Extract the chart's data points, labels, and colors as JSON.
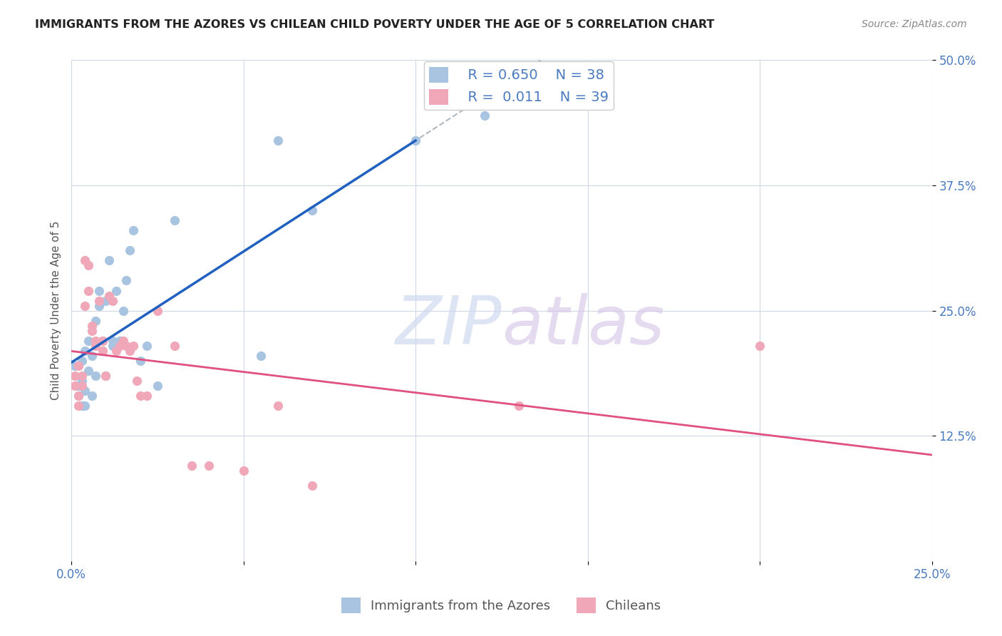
{
  "title": "IMMIGRANTS FROM THE AZORES VS CHILEAN CHILD POVERTY UNDER THE AGE OF 5 CORRELATION CHART",
  "source": "Source: ZipAtlas.com",
  "ylabel": "Child Poverty Under the Age of 5",
  "xlim": [
    0.0,
    0.25
  ],
  "ylim": [
    0.0,
    0.5
  ],
  "xticks": [
    0.0,
    0.05,
    0.1,
    0.15,
    0.2,
    0.25
  ],
  "xticklabels": [
    "0.0%",
    "",
    "",
    "",
    "",
    "25.0%"
  ],
  "ytick_positions": [
    0.125,
    0.25,
    0.375,
    0.5
  ],
  "ytick_labels": [
    "12.5%",
    "25.0%",
    "37.5%",
    "50.0%"
  ],
  "series1_name": "Immigrants from the Azores",
  "series1_R": "0.650",
  "series1_N": "38",
  "series1_color": "#a8c4e0",
  "series1_trend_color": "#2060c0",
  "series2_name": "Chileans",
  "series2_R": "0.011",
  "series2_N": "39",
  "series2_color": "#f0a8b8",
  "series2_trend_color": "#e05080",
  "background_color": "#ffffff",
  "grid_color": "#d0d8e8",
  "series1_x": [
    0.001,
    0.002,
    0.002,
    0.003,
    0.003,
    0.003,
    0.004,
    0.004,
    0.004,
    0.005,
    0.005,
    0.006,
    0.006,
    0.007,
    0.007,
    0.008,
    0.008,
    0.009,
    0.01,
    0.01,
    0.011,
    0.012,
    0.012,
    0.013,
    0.014,
    0.015,
    0.016,
    0.017,
    0.018,
    0.02,
    0.022,
    0.025,
    0.03,
    0.055,
    0.06,
    0.07,
    0.1,
    0.12
  ],
  "series1_y": [
    0.195,
    0.175,
    0.165,
    0.155,
    0.2,
    0.18,
    0.21,
    0.17,
    0.155,
    0.22,
    0.19,
    0.205,
    0.165,
    0.24,
    0.185,
    0.27,
    0.255,
    0.22,
    0.26,
    0.185,
    0.3,
    0.22,
    0.215,
    0.27,
    0.22,
    0.25,
    0.28,
    0.31,
    0.33,
    0.2,
    0.215,
    0.175,
    0.34,
    0.205,
    0.42,
    0.35,
    0.42,
    0.445
  ],
  "series2_x": [
    0.001,
    0.001,
    0.002,
    0.002,
    0.002,
    0.003,
    0.003,
    0.004,
    0.004,
    0.005,
    0.005,
    0.006,
    0.006,
    0.007,
    0.007,
    0.008,
    0.009,
    0.009,
    0.01,
    0.011,
    0.012,
    0.013,
    0.014,
    0.015,
    0.016,
    0.017,
    0.018,
    0.019,
    0.02,
    0.022,
    0.025,
    0.03,
    0.035,
    0.04,
    0.05,
    0.06,
    0.07,
    0.13,
    0.2
  ],
  "series2_y": [
    0.185,
    0.175,
    0.165,
    0.195,
    0.155,
    0.185,
    0.175,
    0.3,
    0.255,
    0.295,
    0.27,
    0.235,
    0.23,
    0.22,
    0.215,
    0.26,
    0.21,
    0.22,
    0.185,
    0.265,
    0.26,
    0.21,
    0.215,
    0.22,
    0.215,
    0.21,
    0.215,
    0.18,
    0.165,
    0.165,
    0.25,
    0.215,
    0.095,
    0.095,
    0.09,
    0.155,
    0.075,
    0.155,
    0.215
  ]
}
